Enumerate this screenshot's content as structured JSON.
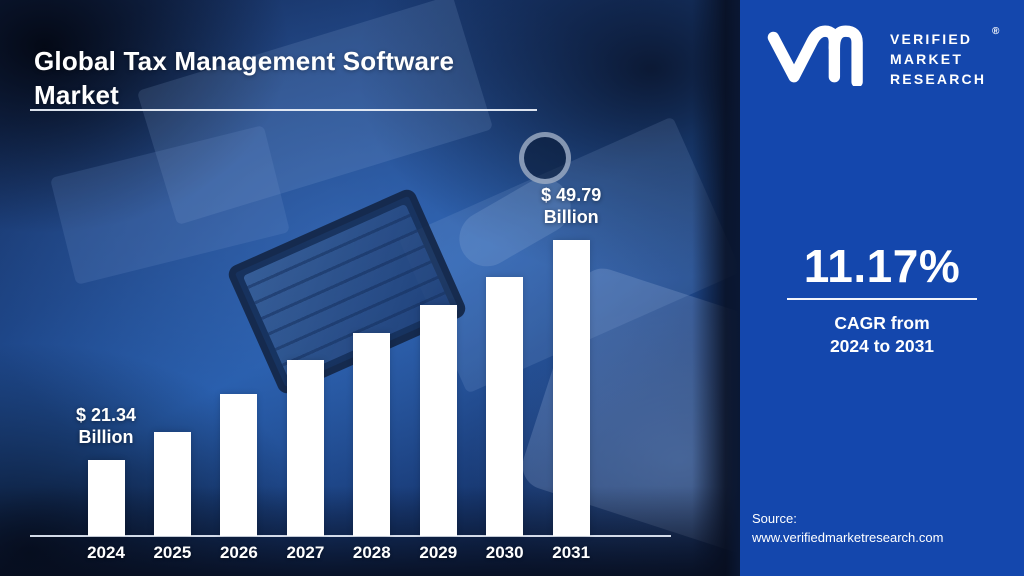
{
  "title": {
    "text": "Global Tax Management Software Market"
  },
  "chart_data": {
    "type": "bar",
    "title": "Global Tax Management Software Market",
    "categories": [
      "2024",
      "2025",
      "2026",
      "2027",
      "2028",
      "2029",
      "2030",
      "2031"
    ],
    "values": [
      21.34,
      24.9,
      29.9,
      34.3,
      37.7,
      41.3,
      45.0,
      49.79
    ],
    "unit": "USD Billion",
    "bar_color": "#ffffff",
    "axis_line_color": "#e4ebf7",
    "label_color": "#ffffff",
    "ylim": [
      11.5,
      58.8
    ],
    "grid": false,
    "legend": false,
    "labeled_points": [
      {
        "category": "2024",
        "value_text": "$ 21.34",
        "unit_text": "Billion"
      },
      {
        "category": "2031",
        "value_text": "$ 49.79",
        "unit_text": "Billion"
      }
    ]
  },
  "side_panel": {
    "background": "#1447ad",
    "logo": {
      "mark": "vm-monogram",
      "brand_lines": [
        "VERIFIED",
        "MARKET",
        "RESEARCH"
      ],
      "registered_mark": "®"
    },
    "cagr": {
      "value": "11.17%",
      "caption_line1": "CAGR from",
      "caption_line2": "2024 to 2031"
    },
    "source": {
      "label": "Source:",
      "url": "www.verifiedmarketresearch.com"
    }
  }
}
